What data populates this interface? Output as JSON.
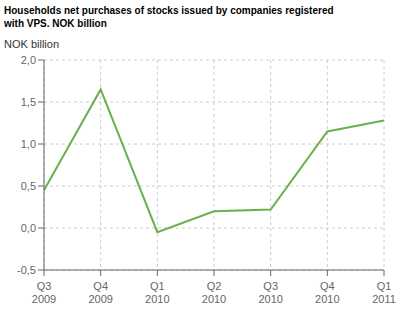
{
  "chart_data": {
    "type": "line",
    "title": "Households net purchases of stocks issued by companies registered\nwith VPS. NOK billion",
    "ylabel": "NOK billion",
    "categories": [
      "Q3\n2009",
      "Q4\n2009",
      "Q1\n2010",
      "Q2\n2010",
      "Q3\n2010",
      "Q4\n2010",
      "Q1\n2011"
    ],
    "values": [
      0.45,
      1.65,
      -0.05,
      0.2,
      0.22,
      1.15,
      1.28
    ],
    "color": "#6ab04c",
    "ylim": [
      -0.5,
      2.0
    ],
    "yticks": [
      {
        "value": -0.5,
        "label": "-0,5"
      },
      {
        "value": 0.0,
        "label": "0,0"
      },
      {
        "value": 0.5,
        "label": "0,5"
      },
      {
        "value": 1.0,
        "label": "1,0"
      },
      {
        "value": 1.5,
        "label": "1,5"
      },
      {
        "value": 2.0,
        "label": "2,0"
      }
    ],
    "grid": true
  }
}
